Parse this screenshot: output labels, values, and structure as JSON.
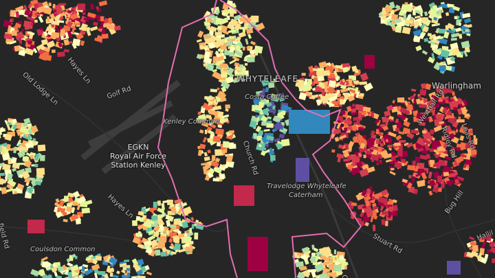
{
  "map": {
    "labels": {
      "whyteleafe": "WHYTELEAFE",
      "warlingham": "Warlingham",
      "kenley_common": "Kenley Common",
      "airfield_code": "EGKN",
      "airfield_name_1": "Royal Air Force",
      "airfield_name_2": "Station Kenley",
      "coulsdon_common": "Coulsdon Common",
      "old_lodge_ln": "Old Lodge Ln",
      "golf_rd": "Golf Rd",
      "hayes_ln_1": "Hayes Ln",
      "hayes_ln_2": "Hayes Ln",
      "church_rd": "Church Rd",
      "costa": "Costa Coffee",
      "travelodge_1": "Travelodge Whyteleafe",
      "travelodge_2": "Caterham",
      "westhall_rd": "Westhall Rd",
      "ridley_rd": "Ridley Rd",
      "leas_rd": "Leas Rd",
      "bug_hill": "Bug Hill",
      "stuart_rd": "Stuart Rd",
      "hallil": "Hallil",
      "field_rd": "field Rd",
      "ca": "Ca"
    },
    "colors": {
      "background": "#262626",
      "road": "#3a3a3a",
      "boundary": "#e46fb0",
      "palette": [
        "#9e0142",
        "#c2294a",
        "#d53e4f",
        "#f46d43",
        "#fdae61",
        "#fee08b",
        "#ffffbf",
        "#e6f598",
        "#abdda4",
        "#66c2a5",
        "#3288bd",
        "#5e4fa2"
      ]
    }
  }
}
